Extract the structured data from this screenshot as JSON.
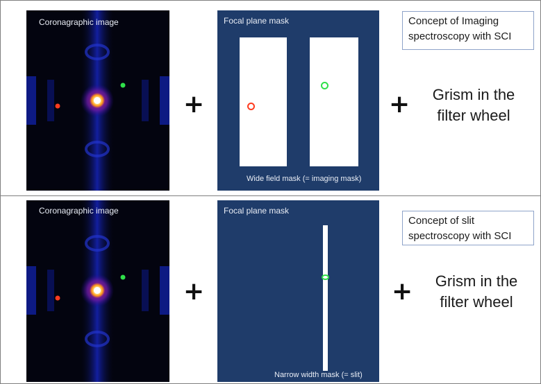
{
  "top_row": {
    "coronagraph": {
      "title": "Coronagraphic image"
    },
    "mask": {
      "title": "Focal plane mask",
      "caption": "Wide field mask (= imaging mask)"
    },
    "concept": {
      "line1": "Concept of Imaging",
      "line2": "spectroscopy with SCI"
    },
    "grism": {
      "line1": "Grism in the",
      "line2": "filter wheel"
    }
  },
  "bottom_row": {
    "coronagraph": {
      "title": "Coronagraphic image"
    },
    "mask": {
      "title": "Focal plane mask",
      "caption": "Narrow width mask (= slit)"
    },
    "concept": {
      "line1": "Concept of slit",
      "line2": "spectroscopy with SCI"
    },
    "grism": {
      "line1": "Grism in the",
      "line2": "filter wheel"
    }
  },
  "symbols": {
    "plus": "+"
  },
  "colors": {
    "mask_background": "#1f3c6a",
    "red_planet": "#ff3b1f",
    "green_planet": "#2fe04a",
    "star_core": "#fff6a0"
  }
}
